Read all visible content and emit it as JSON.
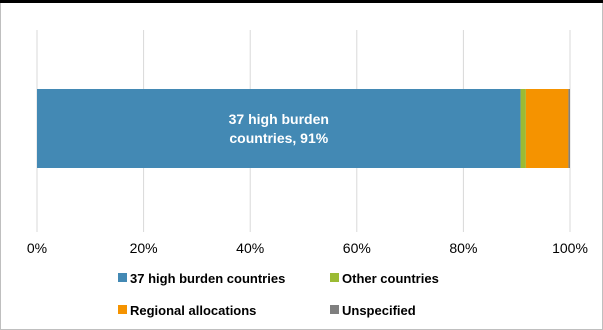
{
  "chart_data": {
    "type": "bar",
    "orientation": "horizontal",
    "stacked": true,
    "xlim": [
      0,
      100
    ],
    "x_tick_labels": [
      "0%",
      "20%",
      "40%",
      "60%",
      "80%",
      "100%"
    ],
    "grid": true,
    "legend_position": "bottom",
    "series": [
      {
        "name": "37 high burden countries",
        "value": 91,
        "color": "#4389b4",
        "label_lines": [
          "37 high burden",
          "countries, 91%"
        ]
      },
      {
        "name": "Other countries",
        "value": 1,
        "color": "#9bbb34"
      },
      {
        "name": "Regional allocations",
        "value": 8,
        "color": "#f59300"
      },
      {
        "name": "Unspecified",
        "value": 0.3,
        "color": "#7f7f7f"
      }
    ]
  }
}
